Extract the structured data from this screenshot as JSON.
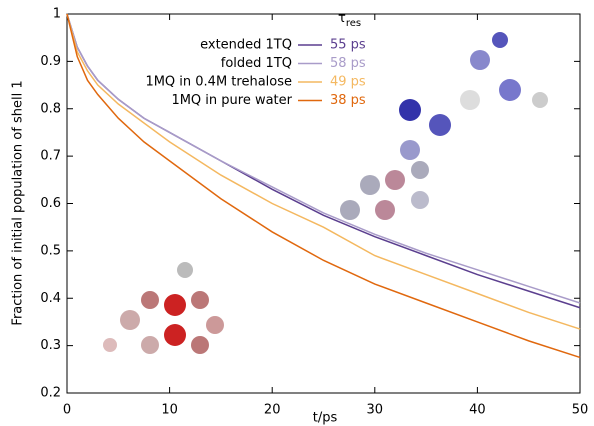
{
  "chart_data": {
    "type": "line",
    "xlabel": "t/ps",
    "ylabel": "Fraction of initial population of shell 1",
    "legend_title_symbol": "τ",
    "legend_title_subscript": "res",
    "legend_position": "upper right",
    "x": [
      0,
      1,
      2,
      3,
      5,
      7.5,
      10,
      15,
      20,
      25,
      30,
      35,
      40,
      45,
      50
    ],
    "series": [
      {
        "name": "extended 1TQ",
        "tau_label": "55 ps",
        "color": "#5b3f8f",
        "values": [
          1,
          0.93,
          0.89,
          0.86,
          0.82,
          0.78,
          0.75,
          0.69,
          0.63,
          0.575,
          0.53,
          0.49,
          0.45,
          0.415,
          0.38
        ]
      },
      {
        "name": "folded 1TQ",
        "tau_label": "58 ps",
        "color": "#a99cc9",
        "values": [
          1,
          0.93,
          0.89,
          0.86,
          0.82,
          0.78,
          0.75,
          0.69,
          0.635,
          0.58,
          0.535,
          0.495,
          0.46,
          0.425,
          0.39
        ]
      },
      {
        "name": "1MQ in 0.4M trehalose",
        "tau_label": "49 ps",
        "color": "#f4b860",
        "values": [
          1,
          0.92,
          0.88,
          0.85,
          0.81,
          0.77,
          0.73,
          0.66,
          0.6,
          0.55,
          0.49,
          0.45,
          0.41,
          0.37,
          0.335
        ]
      },
      {
        "name": "1MQ in pure water",
        "tau_label": "38 ps",
        "color": "#e0680e",
        "values": [
          1,
          0.91,
          0.86,
          0.83,
          0.78,
          0.73,
          0.69,
          0.61,
          0.54,
          0.48,
          0.43,
          0.39,
          0.35,
          0.31,
          0.275
        ]
      }
    ],
    "xlim": [
      0,
      50
    ],
    "xticks": [
      0,
      10,
      20,
      30,
      40,
      50
    ],
    "ylim": [
      0.2,
      1
    ],
    "yticks": [
      0.2,
      0.3,
      0.4,
      0.5,
      0.6,
      0.7,
      0.8,
      0.9,
      1
    ]
  }
}
